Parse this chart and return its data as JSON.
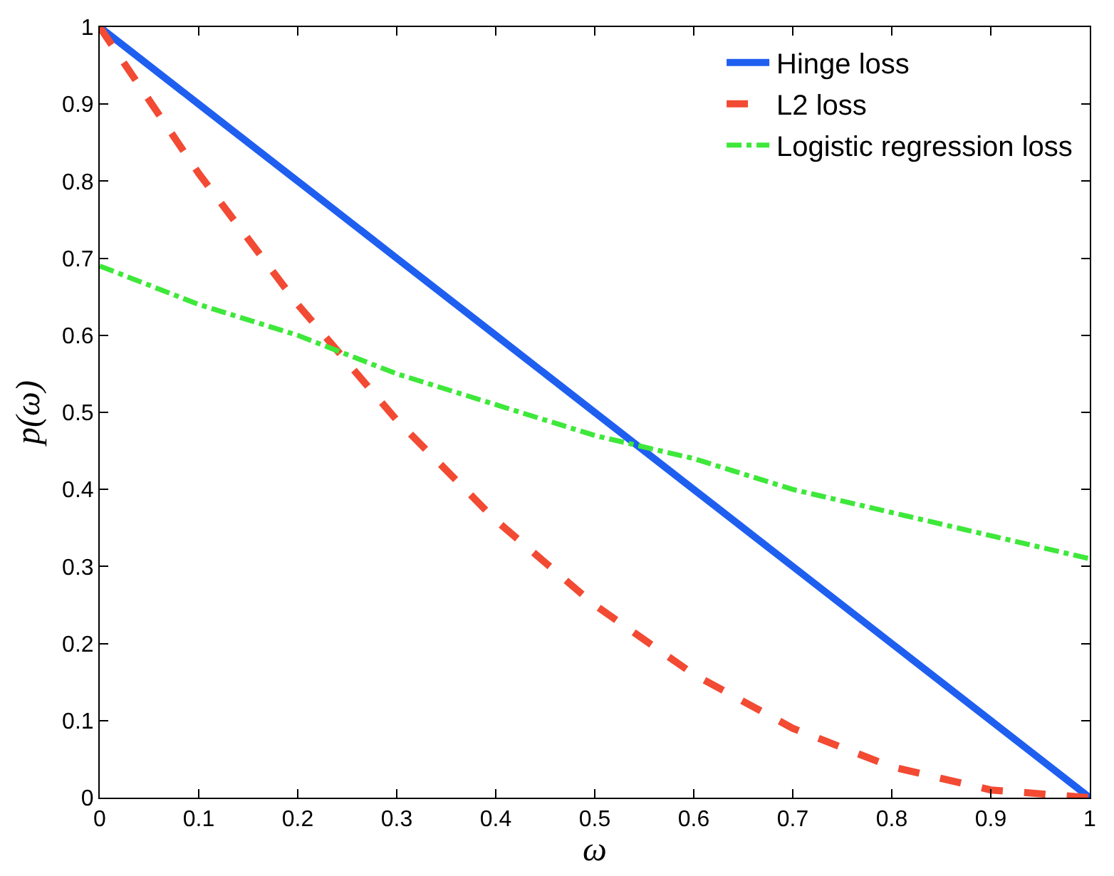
{
  "chart_data": {
    "type": "line",
    "xlabel": "ω",
    "ylabel": "p(ω)",
    "x": [
      0,
      0.1,
      0.2,
      0.3,
      0.4,
      0.5,
      0.6,
      0.7,
      0.8,
      0.9,
      1
    ],
    "series": [
      {
        "name": "Hinge loss",
        "color": "#1f5ff0",
        "line_style": "solid",
        "values": [
          1,
          0.9,
          0.8,
          0.7,
          0.6,
          0.5,
          0.4,
          0.3,
          0.2,
          0.1,
          0
        ]
      },
      {
        "name": "L2 loss",
        "color": "#f24a33",
        "line_style": "dashed",
        "values": [
          1,
          0.81,
          0.64,
          0.49,
          0.36,
          0.25,
          0.16,
          0.09,
          0.04,
          0.01,
          0
        ]
      },
      {
        "name": "Logistic regression loss",
        "color": "#3ee83a",
        "line_style": "dashdot",
        "values": [
          0.69,
          0.64,
          0.6,
          0.55,
          0.51,
          0.47,
          0.44,
          0.4,
          0.37,
          0.34,
          0.31
        ]
      }
    ],
    "xlim": [
      0,
      1
    ],
    "ylim": [
      0,
      1
    ],
    "xticks": [
      0,
      0.1,
      0.2,
      0.3,
      0.4,
      0.5,
      0.6,
      0.7,
      0.8,
      0.9,
      1
    ],
    "yticks": [
      0,
      0.1,
      0.2,
      0.3,
      0.4,
      0.5,
      0.6,
      0.7,
      0.8,
      0.9,
      1
    ],
    "legend": "top right",
    "marker": "none"
  }
}
